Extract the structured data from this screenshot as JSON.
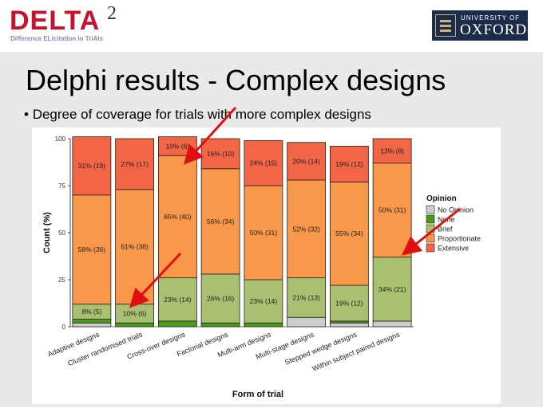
{
  "header": {
    "logo_text": "DELTA",
    "logo_sup": "2",
    "logo_sub": "Difference ELicitation in TriAls",
    "oxford_top": "UNIVERSITY OF",
    "oxford_main": "OXFORD"
  },
  "slide": {
    "title": "Delphi results - Complex designs",
    "bullet": "Degree of coverage for trials with more complex designs"
  },
  "chart_data": {
    "type": "bar",
    "stacked": true,
    "xlabel": "Form of trial",
    "ylabel": "Count (%)",
    "ylim": [
      0,
      100
    ],
    "yticks": [
      "0",
      "25",
      "50",
      "75",
      "100"
    ],
    "categories": [
      "Adaptive designs",
      "Cluster randomised trials",
      "Cross-over designs",
      "Factorial designs",
      "Multi-arm designs",
      "Multi-stage designs",
      "Stepped wedge designs",
      "Within subject paired designs"
    ],
    "series": [
      {
        "name": "No Opinion",
        "color": "#cccccc",
        "values": [
          2,
          0,
          0,
          0,
          0,
          5,
          2,
          3
        ]
      },
      {
        "name": "None",
        "color": "#4a9a1c",
        "values": [
          2,
          2,
          3,
          2,
          2,
          0,
          1,
          0
        ]
      },
      {
        "name": "Brief",
        "color": "#a8c070",
        "values": [
          8,
          10,
          23,
          26,
          23,
          21,
          19,
          34
        ]
      },
      {
        "name": "Proportionate",
        "color": "#f9984a",
        "values": [
          58,
          61,
          65,
          56,
          50,
          52,
          55,
          50
        ]
      },
      {
        "name": "Extensive",
        "color": "#f26545",
        "values": [
          31,
          27,
          10,
          16,
          24,
          20,
          19,
          13
        ]
      }
    ],
    "labels": [
      {
        "series": "Brief",
        "texts": [
          "8% (5)",
          "10% (6)",
          "23% (14)",
          "26% (16)",
          "23% (14)",
          "21% (13)",
          "19% (12)",
          "34% (21)"
        ]
      },
      {
        "series": "Proportionate",
        "texts": [
          "58% (36)",
          "61% (38)",
          "65% (40)",
          "56% (34)",
          "50% (31)",
          "52% (32)",
          "55% (34)",
          "50% (31)"
        ]
      },
      {
        "series": "Extensive",
        "texts": [
          "31% (19)",
          "27% (17)",
          "10% (6)",
          "16% (10)",
          "24% (15)",
          "20% (14)",
          "19% (12)",
          "13% (8)"
        ]
      }
    ],
    "legend": {
      "title": "Opinion",
      "position": "right"
    }
  }
}
